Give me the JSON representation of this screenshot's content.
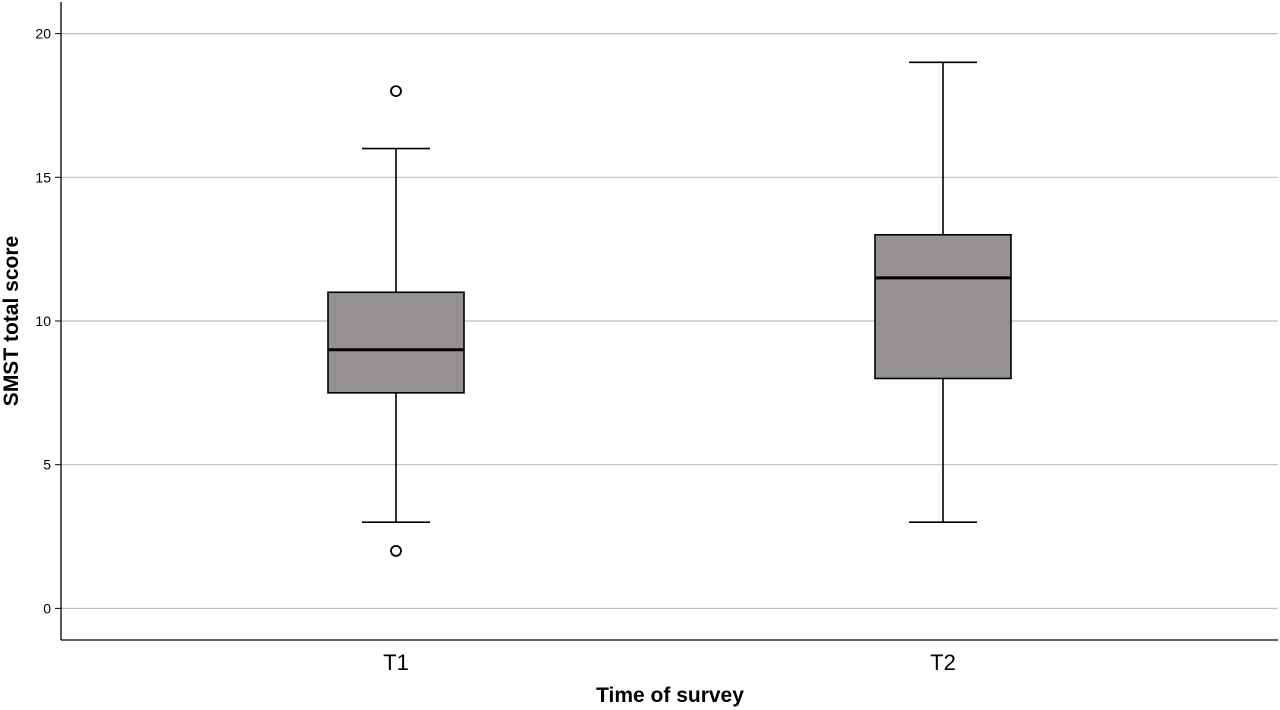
{
  "chart_data": {
    "type": "box",
    "xlabel": "Time of survey",
    "ylabel": "SMST total score",
    "ylim": [
      -1.1,
      21.1
    ],
    "yticks": [
      0,
      5,
      10,
      15,
      20
    ],
    "grid": "horizontal",
    "categories": [
      "T1",
      "T2"
    ],
    "boxes": [
      {
        "category": "T1",
        "whisker_low": 3,
        "q1": 7.5,
        "median": 9,
        "q3": 11,
        "whisker_high": 16,
        "outliers": [
          2,
          18
        ]
      },
      {
        "category": "T2",
        "whisker_low": 3,
        "q1": 8,
        "median": 11.5,
        "q3": 13,
        "whisker_high": 19,
        "outliers": []
      }
    ],
    "box_color": "#959191",
    "grid_color": "#c0c0c0"
  }
}
